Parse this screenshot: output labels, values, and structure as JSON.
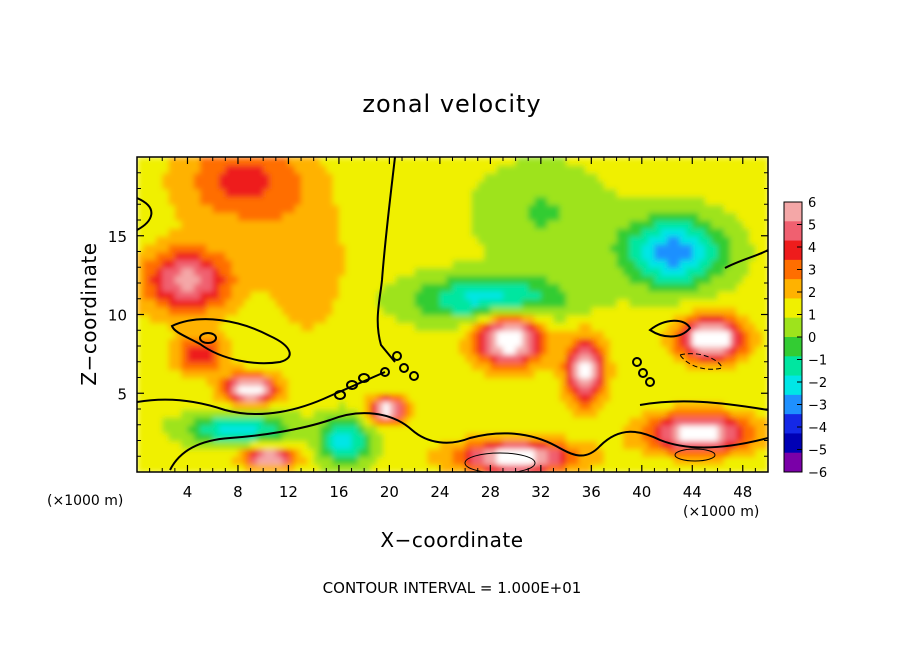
{
  "chart_data": {
    "type": "heatmap",
    "title": "zonal velocity",
    "xlabel": "X−coordinate",
    "ylabel": "Z−coordinate",
    "xlim": [
      0,
      50
    ],
    "ylim": [
      0,
      20
    ],
    "x_ticks": [
      4,
      8,
      12,
      16,
      20,
      24,
      28,
      32,
      36,
      40,
      44,
      48
    ],
    "y_ticks": [
      5,
      10,
      15
    ],
    "x_unit_left": "(×1000 m)",
    "x_unit_right": "(×1000 m)",
    "colorbar": {
      "levels": [
        6,
        5,
        4,
        3,
        2,
        1,
        0,
        -1,
        -2,
        -3,
        -4,
        -5,
        -6
      ],
      "labels": [
        "6",
        "5",
        "4",
        "3",
        "2",
        "1",
        "0",
        "−1",
        "−2",
        "−3",
        "−4",
        "−5",
        "−6"
      ],
      "colors": [
        "#f4a7a7",
        "#f06070",
        "#ee1c1c",
        "#ff6e00",
        "#ffb200",
        "#f0f000",
        "#9ee31c",
        "#33cc33",
        "#00e6a0",
        "#00e6e6",
        "#1e90ff",
        "#1428e6",
        "#0000b4",
        "#7a00a8"
      ],
      "above_range_color": "#ffffff"
    },
    "footer": "CONTOUR INTERVAL = 1.000E+01",
    "features": [
      {
        "x": 8.5,
        "z": 18.5,
        "value": 3.0,
        "sx": 5.0,
        "sz": 2.8
      },
      {
        "x": 4.0,
        "z": 12.2,
        "value": 5.0,
        "sx": 3.5,
        "sz": 2.0
      },
      {
        "x": 13.5,
        "z": 13.0,
        "value": 1.5,
        "sx": 3.0,
        "sz": 4.0
      },
      {
        "x": 5.0,
        "z": 7.5,
        "value": 3.5,
        "sx": 2.0,
        "sz": 1.2
      },
      {
        "x": 9.0,
        "z": 5.3,
        "value": 7.0,
        "sx": 2.0,
        "sz": 0.9
      },
      {
        "x": 19.8,
        "z": 4.0,
        "value": 6.5,
        "sx": 1.4,
        "sz": 0.8
      },
      {
        "x": 35.5,
        "z": 6.5,
        "value": 6.0,
        "sx": 1.5,
        "sz": 2.0
      },
      {
        "x": 44.5,
        "z": 2.5,
        "value": 6.5,
        "sx": 4.0,
        "sz": 1.2
      },
      {
        "x": 30.0,
        "z": 1.0,
        "value": 6.5,
        "sx": 4.5,
        "sz": 1.0
      },
      {
        "x": 10.5,
        "z": 1.0,
        "value": 6.5,
        "sx": 2.0,
        "sz": 0.6
      },
      {
        "x": 29.5,
        "z": 8.5,
        "value": 7.5,
        "sx": 2.5,
        "sz": 1.6
      },
      {
        "x": 45.5,
        "z": 8.5,
        "value": 7.5,
        "sx": 2.5,
        "sz": 1.3
      },
      {
        "x": 42.5,
        "z": 14.0,
        "value": -5.0,
        "sx": 4.0,
        "sz": 2.2
      },
      {
        "x": 28.0,
        "z": 11.0,
        "value": -4.0,
        "sx": 6.0,
        "sz": 1.5
      },
      {
        "x": 8.0,
        "z": 2.8,
        "value": -4.0,
        "sx": 4.0,
        "sz": 1.0
      },
      {
        "x": 16.5,
        "z": 2.0,
        "value": -4.0,
        "sx": 2.0,
        "sz": 1.5
      },
      {
        "x": 32.0,
        "z": 16.5,
        "value": -1.5,
        "sx": 5.0,
        "sz": 3.0
      }
    ]
  }
}
